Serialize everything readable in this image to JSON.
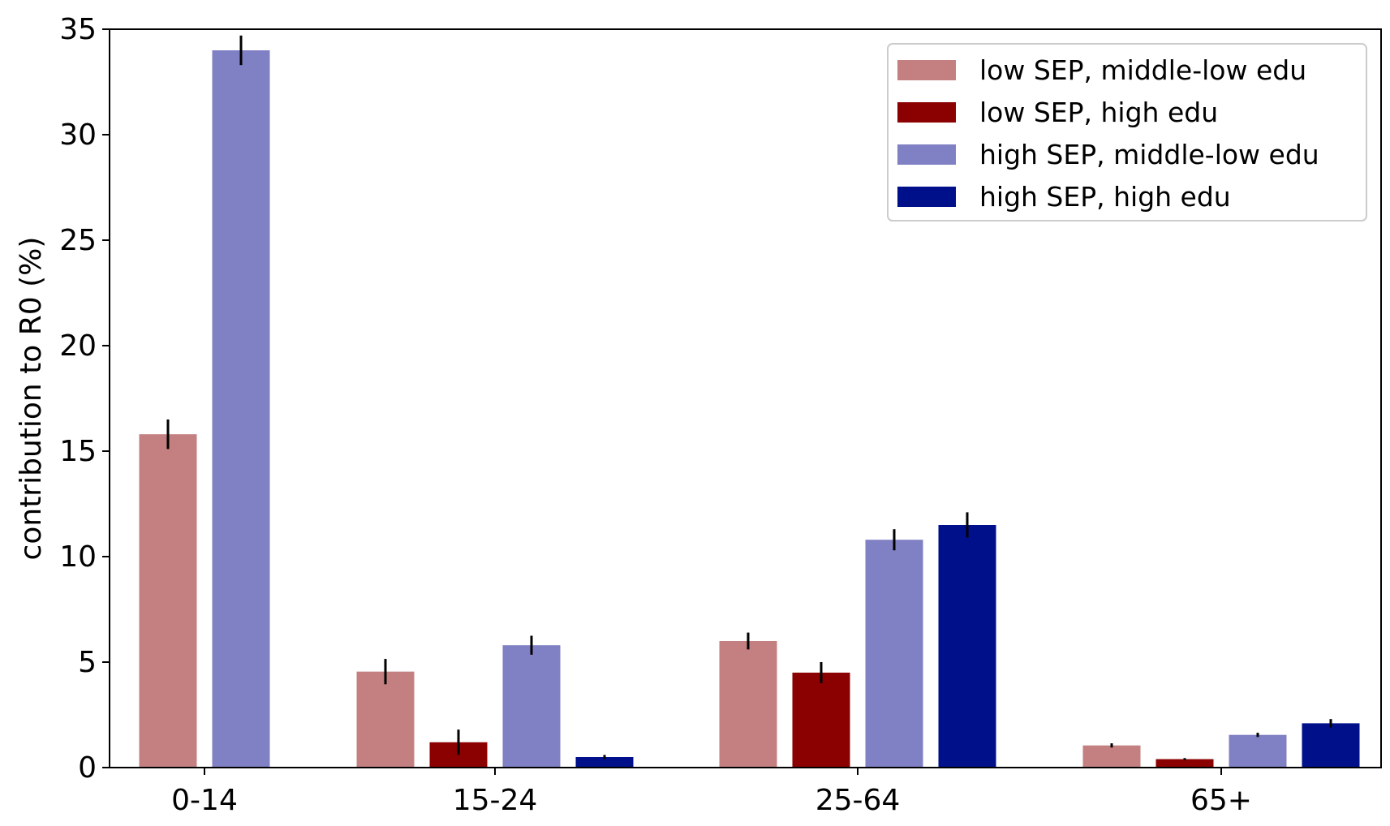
{
  "chart_data": {
    "type": "bar",
    "title": "",
    "xlabel": "",
    "ylabel": "contribution to R0 (%)",
    "ylim": [
      0,
      35
    ],
    "yticks": [
      "0",
      "5",
      "10",
      "15",
      "20",
      "25",
      "30",
      "35"
    ],
    "categories": [
      "0-14",
      "15-24",
      "25-64",
      "65+"
    ],
    "series": [
      {
        "name": "low SEP, middle-low edu",
        "color": "#c48080",
        "values": [
          15.8,
          4.55,
          6.0,
          1.05
        ],
        "errors": [
          0.7,
          0.6,
          0.4,
          0.1
        ]
      },
      {
        "name": "low SEP, high edu",
        "color": "#8b0000",
        "values": [
          null,
          1.2,
          4.5,
          0.4
        ],
        "errors": [
          null,
          0.6,
          0.5,
          0.05
        ]
      },
      {
        "name": "high SEP, middle-low edu",
        "color": "#8080c4",
        "values": [
          34.0,
          5.8,
          10.8,
          1.55
        ],
        "errors": [
          0.7,
          0.45,
          0.5,
          0.1
        ]
      },
      {
        "name": "high SEP, high edu",
        "color": "#00108b",
        "values": [
          null,
          0.5,
          11.5,
          2.1
        ],
        "errors": [
          null,
          0.1,
          0.6,
          0.2
        ]
      }
    ],
    "legend_position": "top-right",
    "grid": false
  }
}
